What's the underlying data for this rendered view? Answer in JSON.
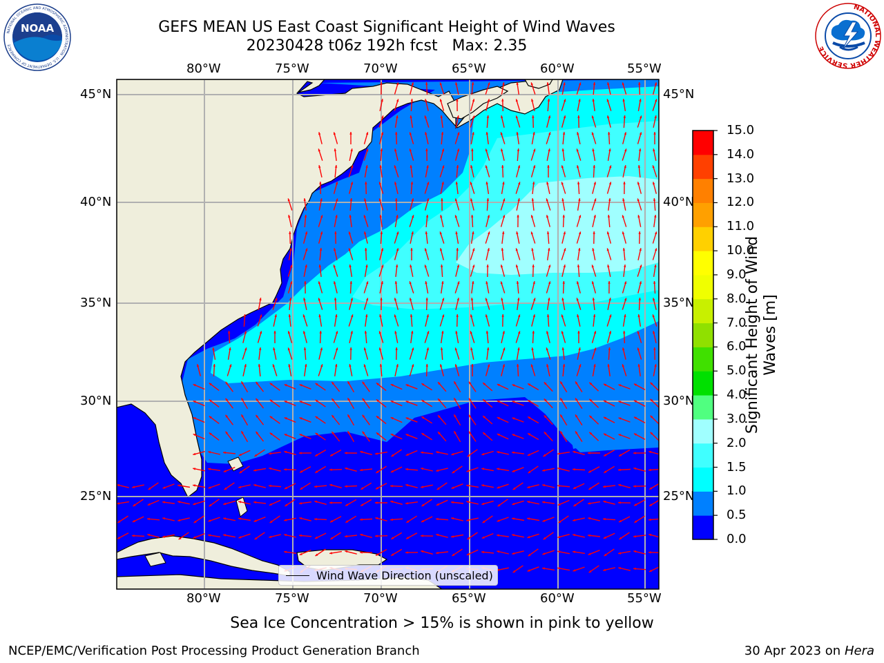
{
  "header": {
    "title_line1": "GEFS MEAN US East Coast Significant Height of Wind Waves",
    "title_line2": "20230428 t06z 192h fcst   Max: 2.35"
  },
  "logos": {
    "left_seal_text": "NATIONAL OCEANIC AND ATMOSPHERIC ADMINISTRATION · U.S. DEPARTMENT OF COMMERCE",
    "left_center_text": "NOAA",
    "right_seal_text": "NATIONAL WEATHER SERVICE"
  },
  "map": {
    "lon_ticks": [
      "80°W",
      "75°W",
      "70°W",
      "65°W",
      "60°W",
      "55°W"
    ],
    "lat_ticks": [
      "45°N",
      "40°N",
      "35°N",
      "30°N",
      "25°N"
    ],
    "colors": {
      "land": "#efeedc",
      "border": "#000000",
      "grid": "#b0b0b0",
      "arrow": "#ff0000"
    }
  },
  "colorbar": {
    "label_line1": "Significant Height of Wind",
    "label_line2": "Waves [m]",
    "ticks": [
      "0.0",
      "0.5",
      "1.0",
      "1.5",
      "2.0",
      "3.0",
      "4.0",
      "5.0",
      "6.0",
      "7.0",
      "8.0",
      "9.0",
      "10.0",
      "11.0",
      "12.0",
      "13.0",
      "14.0",
      "15.0"
    ],
    "colors": [
      "#0000ff",
      "#0080ff",
      "#00ffff",
      "#40ffff",
      "#a0ffff",
      "#50ff80",
      "#00e000",
      "#40e000",
      "#90e000",
      "#c8f000",
      "#f0ff00",
      "#ffff00",
      "#ffd000",
      "#ffa000",
      "#ff8000",
      "#ff4000",
      "#ff0000"
    ]
  },
  "legend": {
    "label": "Wind Wave Direction (unscaled)"
  },
  "notes": {
    "sea_ice": "Sea Ice Concentration > 15% is shown in pink to yellow",
    "credit": "NCEP/EMC/Verification Post Processing Product Generation Branch",
    "date_prefix": "30 Apr 2023 on ",
    "date_machine": "Hera"
  }
}
